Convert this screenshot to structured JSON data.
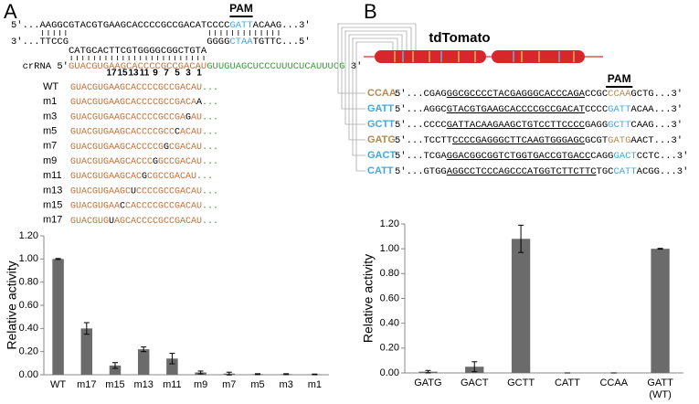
{
  "panel_a": {
    "label": "A",
    "pam_label": "PAM",
    "top": [
      {
        "text": "5'...AAGGCGTACGTGAAGCACCCCGCCGACATCCCC"
      },
      {
        "text": "GATT",
        "color": "#3ea8dc"
      },
      {
        "text": "ACAAG...3'"
      }
    ],
    "bottom_left": "3'...TTCCG",
    "displaced": "CATGCACTTCGTGGGGCGGCTGTA",
    "bottom_right": [
      {
        "text": "GGGG"
      },
      {
        "text": "CTAA",
        "color": "#3ea8dc"
      },
      {
        "text": "TGTTC...5'"
      }
    ],
    "crrna_label": "crRNA 5'",
    "crrna": [
      {
        "text": "GUACGUGAAGCACCCCGCCGACAU",
        "color": "#c0703a"
      },
      {
        "text": "GUUGUAGCUCCCUUUCUCAUUUCG",
        "color": "#3a9a3a"
      },
      {
        "text": " 3'"
      }
    ],
    "positions": [
      17,
      15,
      13,
      11,
      9,
      7,
      5,
      3,
      1
    ],
    "variants": [
      {
        "name": "WT",
        "segments": [
          {
            "text": "GUACGUGAAGCACCCCGCCGACAU",
            "color": "#c0703a"
          },
          {
            "text": "...",
            "color": "#3a9a3a"
          }
        ]
      },
      {
        "name": "m1",
        "segments": [
          {
            "text": "GUACGUGAAGCACCCCGCCGACA",
            "color": "#c0703a"
          },
          {
            "text": "A"
          },
          {
            "text": "...",
            "color": "#3a9a3a"
          }
        ]
      },
      {
        "name": "m3",
        "segments": [
          {
            "text": "GUACGUGAAGCACCCCGCCGA",
            "color": "#c0703a"
          },
          {
            "text": "G"
          },
          {
            "text": "AU",
            "color": "#c0703a"
          },
          {
            "text": "...",
            "color": "#3a9a3a"
          }
        ]
      },
      {
        "name": "m5",
        "segments": [
          {
            "text": "GUACGUGAAGCACCCCGCC",
            "color": "#c0703a"
          },
          {
            "text": "C"
          },
          {
            "text": "ACAU",
            "color": "#c0703a"
          },
          {
            "text": "...",
            "color": "#3a9a3a"
          }
        ]
      },
      {
        "name": "m7",
        "segments": [
          {
            "text": "GUACGUGAAGCACCCCG",
            "color": "#c0703a"
          },
          {
            "text": "G"
          },
          {
            "text": "CGACAU",
            "color": "#c0703a"
          },
          {
            "text": "...",
            "color": "#3a9a3a"
          }
        ]
      },
      {
        "name": "m9",
        "segments": [
          {
            "text": "GUACGUGAAGCACCC",
            "color": "#c0703a"
          },
          {
            "text": "G"
          },
          {
            "text": "GCCGACAU",
            "color": "#c0703a"
          },
          {
            "text": "...",
            "color": "#3a9a3a"
          }
        ]
      },
      {
        "name": "m11",
        "segments": [
          {
            "text": "GUACGUGAAGCAC",
            "color": "#c0703a"
          },
          {
            "text": "G"
          },
          {
            "text": "CGCCGACAU",
            "color": "#c0703a"
          },
          {
            "text": "...",
            "color": "#3a9a3a"
          }
        ]
      },
      {
        "name": "m13",
        "segments": [
          {
            "text": "GUACGUGAAGC",
            "color": "#c0703a"
          },
          {
            "text": "U"
          },
          {
            "text": "CCCCGCCGACAU",
            "color": "#c0703a"
          },
          {
            "text": "...",
            "color": "#3a9a3a"
          }
        ]
      },
      {
        "name": "m15",
        "segments": [
          {
            "text": "GUACGUGAA",
            "color": "#c0703a"
          },
          {
            "text": "C"
          },
          {
            "text": "CACCCCGCCGACAU",
            "color": "#c0703a"
          },
          {
            "text": "...",
            "color": "#3a9a3a"
          }
        ]
      },
      {
        "name": "m17",
        "segments": [
          {
            "text": "GUACGUG",
            "color": "#c0703a"
          },
          {
            "text": "U"
          },
          {
            "text": "AGCACCCCGCCGACAU",
            "color": "#c0703a"
          },
          {
            "text": "...",
            "color": "#3a9a3a"
          }
        ]
      }
    ]
  },
  "panel_b": {
    "label": "B",
    "gene": "tdTomato",
    "pam_label": "PAM",
    "targets": [
      {
        "pam": "CCAA",
        "pam_color": "#b08a50",
        "segments": [
          {
            "text": "5'...CGAG"
          },
          {
            "text": "GGCGCCCCTACGAGGGCACCCAGA",
            "underline": true
          },
          {
            "text": "CCGC"
          },
          {
            "text": "CCAA",
            "color": "#b08a50"
          },
          {
            "text": "GCTG...3'"
          }
        ]
      },
      {
        "pam": "GATT",
        "pam_color": "#3ea8dc",
        "segments": [
          {
            "text": "5'...AGGC"
          },
          {
            "text": "GTACGTGAAGCACCCCGCCGACAT",
            "underline": true
          },
          {
            "text": "CCCC"
          },
          {
            "text": "GATT",
            "color": "#3ea8dc"
          },
          {
            "text": "ACAA...3'"
          }
        ]
      },
      {
        "pam": "GCTT",
        "pam_color": "#3ea8dc",
        "segments": [
          {
            "text": "5'...CCCC"
          },
          {
            "text": "GATTACAAGAAGCTGTCCTTCCCC",
            "underline": true
          },
          {
            "text": "GAGG"
          },
          {
            "text": "GCTT",
            "color": "#3ea8dc"
          },
          {
            "text": "CAAG...3'"
          }
        ]
      },
      {
        "pam": "GATG",
        "pam_color": "#b08a50",
        "segments": [
          {
            "text": "5'...TCCTT"
          },
          {
            "text": "CCCCGAGGGCTTCAAGTGGGAGC",
            "underline": true
          },
          {
            "text": "GCGT"
          },
          {
            "text": "GATG",
            "color": "#b08a50"
          },
          {
            "text": "AACT...3'"
          }
        ]
      },
      {
        "pam": "GACT",
        "pam_color": "#3ea8dc",
        "segments": [
          {
            "text": "5'...TCGA"
          },
          {
            "text": "GGACGGCGGTCTGGTGACCGTGACC",
            "underline": true
          },
          {
            "text": "CAGG"
          },
          {
            "text": "GACT",
            "color": "#3ea8dc"
          },
          {
            "text": "CCTC...3'"
          }
        ]
      },
      {
        "pam": "CATT",
        "pam_color": "#3ea8dc",
        "segments": [
          {
            "text": "5'...GTGG"
          },
          {
            "text": "AGGCCTCCCAGCCCATGGTCTTCTTC",
            "underline": true
          },
          {
            "text": "TGC"
          },
          {
            "text": "CATT",
            "color": "#3ea8dc"
          },
          {
            "text": "ACGG...3'"
          }
        ]
      }
    ]
  },
  "chart_data": [
    {
      "type": "bar",
      "ylabel": "Relative activity",
      "categories": [
        "WT",
        "m17",
        "m15",
        "m13",
        "m11",
        "m9",
        "m7",
        "m5",
        "m3",
        "m1"
      ],
      "values": [
        1.0,
        0.4,
        0.08,
        0.22,
        0.14,
        0.02,
        0.01,
        0.005,
        0.005,
        0.003
      ],
      "errors": [
        0.004,
        0.05,
        0.025,
        0.02,
        0.045,
        0.012,
        0.012,
        0.004,
        0.004,
        0.003
      ],
      "color": "#6b6b6b",
      "ylim": [
        0,
        1.2
      ],
      "yticks": [
        {
          "value": 0,
          "label": "0.00"
        },
        {
          "value": 0.2,
          "label": "0.20"
        },
        {
          "value": 0.4,
          "label": "0.40"
        },
        {
          "value": 0.6,
          "label": "0.60"
        },
        {
          "value": 0.8,
          "label": "0.80"
        },
        {
          "value": 1,
          "label": "1.00"
        },
        {
          "value": 1.2,
          "label": "1.20"
        }
      ]
    },
    {
      "type": "bar",
      "ylabel": "Relative activity",
      "categories": [
        "GATG",
        "GACT",
        "GCTT",
        "CATT",
        "CCAA",
        "GATT (WT)"
      ],
      "values": [
        0.01,
        0.05,
        1.08,
        0,
        0,
        1.0
      ],
      "errors": [
        0.01,
        0.04,
        0.11,
        0,
        0,
        0.003
      ],
      "color": "#6b6b6b",
      "ylim": [
        0,
        1.2
      ],
      "yticks": [
        {
          "value": 0,
          "label": "0.00"
        },
        {
          "value": 0.2,
          "label": "0.20"
        },
        {
          "value": 0.4,
          "label": "0.40"
        },
        {
          "value": 0.6,
          "label": "0.60"
        },
        {
          "value": 0.8,
          "label": "0.80"
        },
        {
          "value": 1,
          "label": "1.00"
        },
        {
          "value": 1.2,
          "label": "1.20"
        }
      ]
    }
  ]
}
